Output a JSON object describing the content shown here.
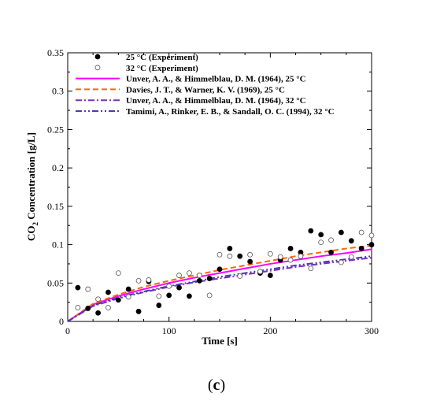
{
  "chart_data": {
    "type": "scatter",
    "xlabel": "Time [s]",
    "ylabel_main": "CO",
    "ylabel_sub": "2",
    "ylabel_rest": " Concentration [g/L]",
    "xlim": [
      0,
      300
    ],
    "ylim": [
      0,
      0.35
    ],
    "x_ticks": [
      0,
      100,
      200,
      300
    ],
    "x_tick_labels": [
      "0",
      "100",
      "200",
      "300"
    ],
    "y_ticks": [
      0,
      0.05,
      0.1,
      0.15,
      0.2,
      0.25,
      0.3,
      0.35
    ],
    "y_tick_labels": [
      "0",
      "0.05",
      "0.1",
      "0.15",
      "0.2",
      "0.25",
      "0.3",
      "0.35"
    ],
    "grid": false,
    "legend_position": "top-left",
    "caption_prefix": "(",
    "caption_letter": "c",
    "caption_suffix": ")",
    "scatter_series": [
      {
        "name": "25 °C (Experiment)",
        "marker": "filled-circle",
        "color": "#000000",
        "x": [
          10,
          20,
          30,
          40,
          50,
          60,
          70,
          80,
          90,
          100,
          110,
          120,
          130,
          140,
          150,
          160,
          170,
          180,
          190,
          200,
          210,
          220,
          230,
          240,
          250,
          260,
          270,
          280,
          290,
          300
        ],
        "y": [
          0.044,
          0.017,
          0.011,
          0.038,
          0.028,
          0.042,
          0.013,
          0.052,
          0.021,
          0.034,
          0.044,
          0.033,
          0.053,
          0.056,
          0.068,
          0.095,
          0.085,
          0.078,
          0.063,
          0.06,
          0.08,
          0.095,
          0.09,
          0.118,
          0.113,
          0.09,
          0.116,
          0.105,
          0.095,
          0.1
        ]
      },
      {
        "name": "32 °C (Experiment)",
        "marker": "open-circle",
        "color": "#000000",
        "x": [
          10,
          20,
          30,
          40,
          50,
          60,
          70,
          80,
          90,
          100,
          110,
          120,
          130,
          140,
          150,
          160,
          170,
          180,
          190,
          200,
          210,
          220,
          230,
          240,
          250,
          260,
          270,
          280,
          290,
          300
        ],
        "y": [
          0.018,
          0.042,
          0.029,
          0.018,
          0.063,
          0.032,
          0.053,
          0.054,
          0.033,
          0.046,
          0.06,
          0.063,
          0.06,
          0.034,
          0.087,
          0.085,
          0.059,
          0.087,
          0.065,
          0.088,
          0.084,
          0.08,
          0.085,
          0.069,
          0.103,
          0.106,
          0.077,
          0.084,
          0.116,
          0.112
        ]
      }
    ],
    "line_series": [
      {
        "name": "Unver, A. A., & Himmelblau, D. M. (1964), 25 °C",
        "color": "#ff00ff",
        "dash": "solid",
        "x": [
          0,
          25,
          50,
          75,
          100,
          125,
          150,
          175,
          200,
          225,
          250,
          275,
          300
        ],
        "y": [
          0,
          0.022,
          0.033,
          0.042,
          0.05,
          0.057,
          0.063,
          0.069,
          0.075,
          0.08,
          0.085,
          0.089,
          0.094
        ]
      },
      {
        "name": "Davies, J. T., & Warner, K. V. (1969), 25 °C",
        "color": "#ff6600",
        "dash": "dash",
        "x": [
          0,
          25,
          50,
          75,
          100,
          125,
          150,
          175,
          200,
          225,
          250,
          275,
          300
        ],
        "y": [
          0,
          0.023,
          0.035,
          0.045,
          0.053,
          0.06,
          0.067,
          0.073,
          0.079,
          0.085,
          0.09,
          0.095,
          0.099
        ]
      },
      {
        "name": "Unver, A. A., & Himmelblau, D. M. (1964), 32 °C",
        "color": "#7b2fbe",
        "dash": "dashdot",
        "x": [
          0,
          25,
          50,
          75,
          100,
          125,
          150,
          175,
          200,
          225,
          250,
          275,
          300
        ],
        "y": [
          0,
          0.02,
          0.03,
          0.038,
          0.045,
          0.051,
          0.056,
          0.061,
          0.066,
          0.071,
          0.075,
          0.079,
          0.083
        ]
      },
      {
        "name": "Tamimi, A., Rinker, E. B., & Sandall, O. C. (1994), 32 °C",
        "color": "#4b3ab5",
        "dash": "dashdotdot",
        "x": [
          0,
          25,
          50,
          75,
          100,
          125,
          150,
          175,
          200,
          225,
          250,
          275,
          300
        ],
        "y": [
          0,
          0.021,
          0.031,
          0.039,
          0.046,
          0.052,
          0.058,
          0.063,
          0.068,
          0.073,
          0.077,
          0.081,
          0.085
        ]
      }
    ]
  }
}
